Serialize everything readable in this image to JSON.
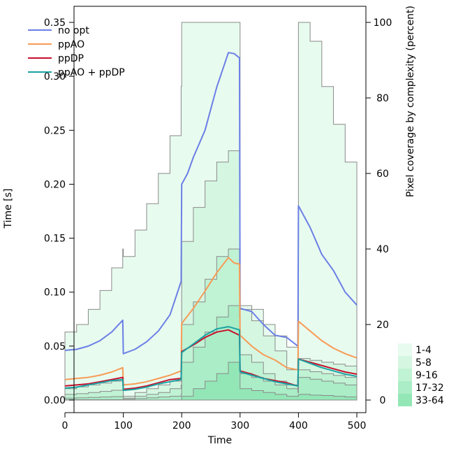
{
  "chart_data": {
    "type": "line",
    "title": "",
    "xlabel": "Time",
    "ylabel": "Time [s]",
    "y2label": "Pixel coverage by complexity (percent)",
    "xlim": [
      0,
      500
    ],
    "ylim": [
      0,
      0.35
    ],
    "y2lim": [
      0,
      100
    ],
    "xticks": [
      "0",
      "100",
      "200",
      "300",
      "400",
      "500"
    ],
    "yticks": [
      "0.00",
      "0.05",
      "0.10",
      "0.15",
      "0.20",
      "0.25",
      "0.30",
      "0.35"
    ],
    "y2ticks": [
      "0",
      "20",
      "40",
      "60",
      "80",
      "100"
    ],
    "grid": false,
    "legend_position": "top-left",
    "series": [
      {
        "name": "no opt",
        "color": "#6b7fe6",
        "points": [
          [
            0,
            0.046
          ],
          [
            20,
            0.047
          ],
          [
            40,
            0.05
          ],
          [
            60,
            0.055
          ],
          [
            80,
            0.063
          ],
          [
            99,
            0.074
          ],
          [
            100,
            0.043
          ],
          [
            120,
            0.047
          ],
          [
            140,
            0.054
          ],
          [
            160,
            0.064
          ],
          [
            180,
            0.079
          ],
          [
            199,
            0.11
          ],
          [
            200,
            0.2
          ],
          [
            210,
            0.21
          ],
          [
            220,
            0.225
          ],
          [
            240,
            0.25
          ],
          [
            260,
            0.29
          ],
          [
            280,
            0.322
          ],
          [
            290,
            0.321
          ],
          [
            299,
            0.317
          ],
          [
            300,
            0.085
          ],
          [
            320,
            0.082
          ],
          [
            340,
            0.07
          ],
          [
            360,
            0.06
          ],
          [
            380,
            0.058
          ],
          [
            399,
            0.05
          ],
          [
            400,
            0.18
          ],
          [
            420,
            0.16
          ],
          [
            440,
            0.135
          ],
          [
            460,
            0.12
          ],
          [
            480,
            0.1
          ],
          [
            500,
            0.088
          ]
        ]
      },
      {
        "name": "ppAO",
        "color": "#f79b56",
        "points": [
          [
            0,
            0.019
          ],
          [
            20,
            0.02
          ],
          [
            40,
            0.021
          ],
          [
            60,
            0.023
          ],
          [
            80,
            0.026
          ],
          [
            99,
            0.03
          ],
          [
            100,
            0.014
          ],
          [
            120,
            0.015
          ],
          [
            140,
            0.017
          ],
          [
            160,
            0.02
          ],
          [
            180,
            0.023
          ],
          [
            199,
            0.027
          ],
          [
            200,
            0.071
          ],
          [
            220,
            0.085
          ],
          [
            240,
            0.101
          ],
          [
            260,
            0.118
          ],
          [
            280,
            0.132
          ],
          [
            290,
            0.127
          ],
          [
            299,
            0.126
          ],
          [
            300,
            0.06
          ],
          [
            320,
            0.05
          ],
          [
            340,
            0.042
          ],
          [
            360,
            0.037
          ],
          [
            380,
            0.03
          ],
          [
            399,
            0.028
          ],
          [
            400,
            0.073
          ],
          [
            420,
            0.064
          ],
          [
            440,
            0.055
          ],
          [
            460,
            0.048
          ],
          [
            480,
            0.043
          ],
          [
            500,
            0.039
          ]
        ]
      },
      {
        "name": "ppDP",
        "color": "#c8102e",
        "points": [
          [
            0,
            0.013
          ],
          [
            20,
            0.014
          ],
          [
            40,
            0.015
          ],
          [
            60,
            0.017
          ],
          [
            80,
            0.019
          ],
          [
            99,
            0.021
          ],
          [
            100,
            0.01
          ],
          [
            120,
            0.011
          ],
          [
            140,
            0.013
          ],
          [
            160,
            0.016
          ],
          [
            180,
            0.019
          ],
          [
            199,
            0.02
          ],
          [
            200,
            0.045
          ],
          [
            220,
            0.051
          ],
          [
            240,
            0.058
          ],
          [
            260,
            0.063
          ],
          [
            280,
            0.065
          ],
          [
            299,
            0.06
          ],
          [
            300,
            0.027
          ],
          [
            320,
            0.024
          ],
          [
            340,
            0.02
          ],
          [
            360,
            0.018
          ],
          [
            380,
            0.016
          ],
          [
            399,
            0.013
          ],
          [
            400,
            0.038
          ],
          [
            420,
            0.035
          ],
          [
            440,
            0.032
          ],
          [
            460,
            0.029
          ],
          [
            480,
            0.026
          ],
          [
            500,
            0.024
          ]
        ]
      },
      {
        "name": "ppAO + ppDP",
        "color": "#1aa3a3",
        "points": [
          [
            0,
            0.011
          ],
          [
            20,
            0.012
          ],
          [
            40,
            0.014
          ],
          [
            60,
            0.016
          ],
          [
            80,
            0.018
          ],
          [
            99,
            0.019
          ],
          [
            100,
            0.009
          ],
          [
            120,
            0.01
          ],
          [
            140,
            0.012
          ],
          [
            160,
            0.015
          ],
          [
            180,
            0.017
          ],
          [
            199,
            0.019
          ],
          [
            200,
            0.044
          ],
          [
            220,
            0.052
          ],
          [
            240,
            0.06
          ],
          [
            260,
            0.066
          ],
          [
            280,
            0.068
          ],
          [
            299,
            0.065
          ],
          [
            300,
            0.026
          ],
          [
            320,
            0.023
          ],
          [
            340,
            0.02
          ],
          [
            360,
            0.017
          ],
          [
            380,
            0.015
          ],
          [
            399,
            0.013
          ],
          [
            400,
            0.038
          ],
          [
            420,
            0.034
          ],
          [
            440,
            0.03
          ],
          [
            460,
            0.027
          ],
          [
            480,
            0.024
          ],
          [
            500,
            0.022
          ]
        ]
      }
    ],
    "coverage_bands": {
      "x": [
        0,
        20,
        40,
        60,
        80,
        99,
        100,
        120,
        140,
        160,
        180,
        199,
        200,
        220,
        240,
        260,
        280,
        299,
        300,
        320,
        340,
        360,
        380,
        399,
        400,
        420,
        440,
        460,
        480,
        500
      ],
      "layers": [
        {
          "name": "1-4",
          "color": "#e8fbef",
          "values": [
            18,
            20,
            24,
            29,
            35,
            40,
            38,
            45,
            52,
            60,
            70,
            83,
            100,
            100,
            100,
            100,
            100,
            100,
            25,
            24,
            20,
            17,
            14,
            7,
            100,
            95,
            83,
            73,
            63,
            55
          ]
        },
        {
          "name": "5-8",
          "color": "#d5f7e2",
          "values": [
            3,
            3.5,
            4,
            4.5,
            5,
            5.5,
            1,
            2,
            3,
            4,
            5,
            7,
            42,
            51,
            58,
            63,
            66,
            60,
            24,
            21,
            17,
            13,
            8,
            5,
            11,
            10.5,
            10,
            9.5,
            9,
            8
          ]
        },
        {
          "name": "9-16",
          "color": "#c0f2d4",
          "values": [
            1.5,
            1.7,
            2,
            2.3,
            2.6,
            3,
            0.5,
            1,
            1.5,
            2,
            3,
            4,
            20,
            26,
            32,
            38,
            40,
            36,
            12,
            10,
            7,
            5,
            4,
            3,
            8,
            7.5,
            7,
            6.5,
            6,
            5.5
          ]
        },
        {
          "name": "17-32",
          "color": "#aaedc6",
          "values": [
            0.5,
            0.6,
            0.7,
            0.8,
            0.9,
            1,
            0.2,
            0.4,
            0.6,
            0.8,
            1,
            1.5,
            10,
            14,
            18,
            22,
            25,
            22,
            7,
            6,
            5,
            4,
            3,
            2,
            6,
            5.5,
            5,
            4.5,
            4,
            3.5
          ]
        },
        {
          "name": "33-64",
          "color": "#93e7b6",
          "values": [
            0.1,
            0.1,
            0.1,
            0.1,
            0.1,
            0.1,
            0,
            0,
            0,
            0,
            0,
            0,
            1,
            3,
            5,
            7,
            10,
            8,
            3,
            2.5,
            2,
            1.5,
            1,
            1,
            1.5,
            1.3,
            1.2,
            1,
            0.8,
            0.6
          ]
        }
      ]
    }
  }
}
